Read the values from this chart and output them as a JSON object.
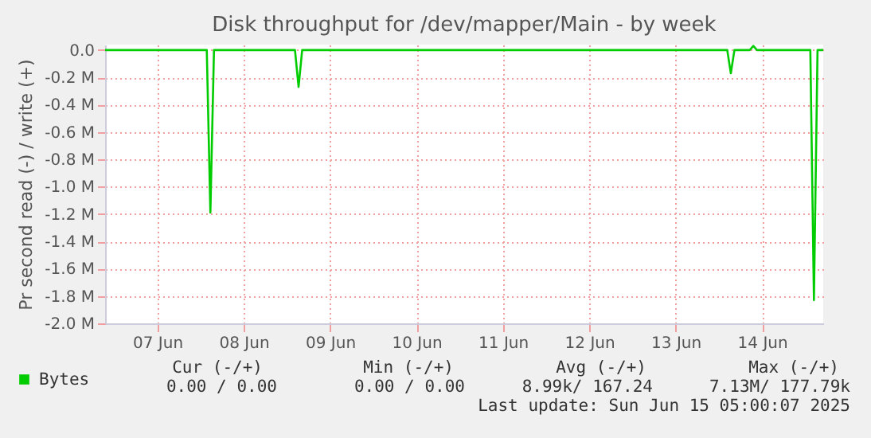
{
  "chart_data": {
    "type": "line",
    "title": "Disk throughput for /dev/mapper/Main - by week",
    "ylabel": "Pr second read (-) / write (+)",
    "x": [
      "2025-06-06T21:30",
      "2025-06-08T01:45",
      "2025-06-08T02:45",
      "2025-06-08T03:45",
      "2025-06-09T02:15",
      "2025-06-09T03:15",
      "2025-06-09T04:15",
      "2025-06-14T02:20",
      "2025-06-14T03:20",
      "2025-06-14T04:20",
      "2025-06-14T08:35",
      "2025-06-14T09:35",
      "2025-06-14T10:35",
      "2025-06-15T01:25",
      "2025-06-15T02:25",
      "2025-06-15T03:25",
      "2025-06-15T05:00"
    ],
    "series": [
      {
        "name": "Bytes",
        "color": "#00cc00",
        "values": [
          0,
          0,
          -1190000,
          0,
          0,
          -270000,
          0,
          0,
          -170000,
          0,
          0,
          30000,
          0,
          0,
          -1830000,
          0,
          0
        ]
      }
    ],
    "xlim": [
      "2025-06-06T21:30",
      "2025-06-15T05:00"
    ],
    "xticks": [
      {
        "value": "2025-06-07T12:00",
        "label": "07 Jun"
      },
      {
        "value": "2025-06-08T12:00",
        "label": "08 Jun"
      },
      {
        "value": "2025-06-09T12:00",
        "label": "09 Jun"
      },
      {
        "value": "2025-06-10T12:00",
        "label": "10 Jun"
      },
      {
        "value": "2025-06-11T12:00",
        "label": "11 Jun"
      },
      {
        "value": "2025-06-12T12:00",
        "label": "12 Jun"
      },
      {
        "value": "2025-06-13T12:00",
        "label": "13 Jun"
      },
      {
        "value": "2025-06-14T12:00",
        "label": "14 Jun"
      }
    ],
    "ylim": [
      -2000000,
      40000
    ],
    "yticks": [
      {
        "value": 0,
        "label": "0.0"
      },
      {
        "value": -200000,
        "label": "-0.2 M"
      },
      {
        "value": -400000,
        "label": "-0.4 M"
      },
      {
        "value": -600000,
        "label": "-0.6 M"
      },
      {
        "value": -800000,
        "label": "-0.8 M"
      },
      {
        "value": -1000000,
        "label": "-1.0 M"
      },
      {
        "value": -1200000,
        "label": "-1.2 M"
      },
      {
        "value": -1400000,
        "label": "-1.4 M"
      },
      {
        "value": -1600000,
        "label": "-1.6 M"
      },
      {
        "value": -1800000,
        "label": "-1.8 M"
      },
      {
        "value": -2000000,
        "label": "-2.0 M"
      }
    ],
    "grid": true,
    "legend": "bottom left",
    "marker": "none",
    "line_style": "solid",
    "annotations": [
      "Cur (-/+)",
      "Min (-/+)",
      "Avg (-/+)",
      "Max (-/+)",
      "0.00 /    0.00",
      "0.00 /    0.00",
      "8.99k/ 167.24",
      "7.13M/ 177.79k",
      "Last update: Sun Jun 15 05:00:07 2025"
    ]
  }
}
